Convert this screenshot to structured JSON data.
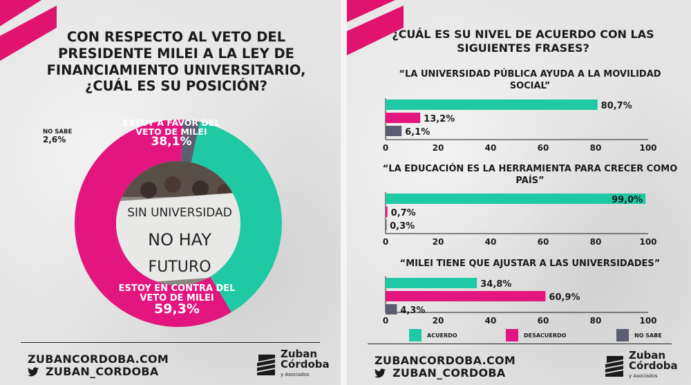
{
  "colors": {
    "acuerdo": "#1fc9a3",
    "desacuerdo": "#e3157f",
    "nosabe": "#5b5d70",
    "brand_pink": "#e0146f",
    "ink": "#1a1a1a"
  },
  "left": {
    "title": "CON RESPECTO AL VETO DEL PRESIDENTE MILEI A LA LEY DE FINANCIAMIENTO UNIVERSITARIO, ¿CUÁL ES SU POSICIÓN?",
    "photo_text": [
      "SIN UNIVERSIDAD",
      "NO HAY",
      "FUTURO"
    ],
    "footer_url": "ZUBANCORDOBA.COM",
    "footer_handle": "ZUBAN_CORDOBA",
    "logo": {
      "line1": "Zuban",
      "line2": "Córdoba",
      "line3": "y Asociados"
    }
  },
  "right": {
    "title": "¿CUÁL ES SU NIVEL DE ACUERDO CON LAS SIGUIENTES FRASES?",
    "legend": [
      "ACUERDO",
      "DESACUERDO",
      "NO SABE"
    ],
    "footer_url": "ZUBANCORDOBA.COM",
    "footer_handle": "ZUBAN_CORDOBA",
    "logo": {
      "line1": "Zuban",
      "line2": "Córdoba",
      "line3": "y Asociados"
    }
  },
  "chart_data": [
    {
      "type": "pie",
      "categories": [
        "ESTOY A FAVOR DEL VETO DE MILEI",
        "ESTOY EN CONTRA DEL VETO DE MILEI",
        "NO SABE"
      ],
      "values": [
        38.1,
        59.3,
        2.6
      ],
      "labels": [
        "38,1%",
        "59,3%",
        "2,6%"
      ],
      "colors": [
        "#1fc9a3",
        "#e3157f",
        "#5b5d70"
      ]
    },
    {
      "type": "bar",
      "title": "“LA UNIVERSIDAD PÚBLICA AYUDA A LA MOVILIDAD SOCIAL”",
      "categories": [
        "ACUERDO",
        "DESACUERDO",
        "NO SABE"
      ],
      "values": [
        80.7,
        13.2,
        6.1
      ],
      "labels": [
        "80,7%",
        "13,2%",
        "6,1%"
      ],
      "xlim": [
        0,
        100
      ],
      "ticks": [
        "0",
        "20",
        "40",
        "60",
        "80",
        "100"
      ]
    },
    {
      "type": "bar",
      "title": "“LA EDUCACIÓN ES LA HERRAMIENTA PARA CRECER COMO PAÍS”",
      "categories": [
        "ACUERDO",
        "DESACUERDO",
        "NO SABE"
      ],
      "values": [
        99.0,
        0.7,
        0.3
      ],
      "labels": [
        "99,0%",
        "0,7%",
        "0,3%"
      ],
      "xlim": [
        0,
        100
      ],
      "ticks": [
        "0",
        "20",
        "40",
        "60",
        "80",
        "100"
      ]
    },
    {
      "type": "bar",
      "title": "“MILEI TIENE QUE AJUSTAR A LAS UNIVERSIDADES”",
      "categories": [
        "ACUERDO",
        "DESACUERDO",
        "NO SABE"
      ],
      "values": [
        34.8,
        60.9,
        4.3
      ],
      "labels": [
        "34,8%",
        "60,9%",
        "4,3%"
      ],
      "xlim": [
        0,
        100
      ],
      "ticks": [
        "0",
        "20",
        "40",
        "60",
        "80",
        "100"
      ]
    }
  ]
}
